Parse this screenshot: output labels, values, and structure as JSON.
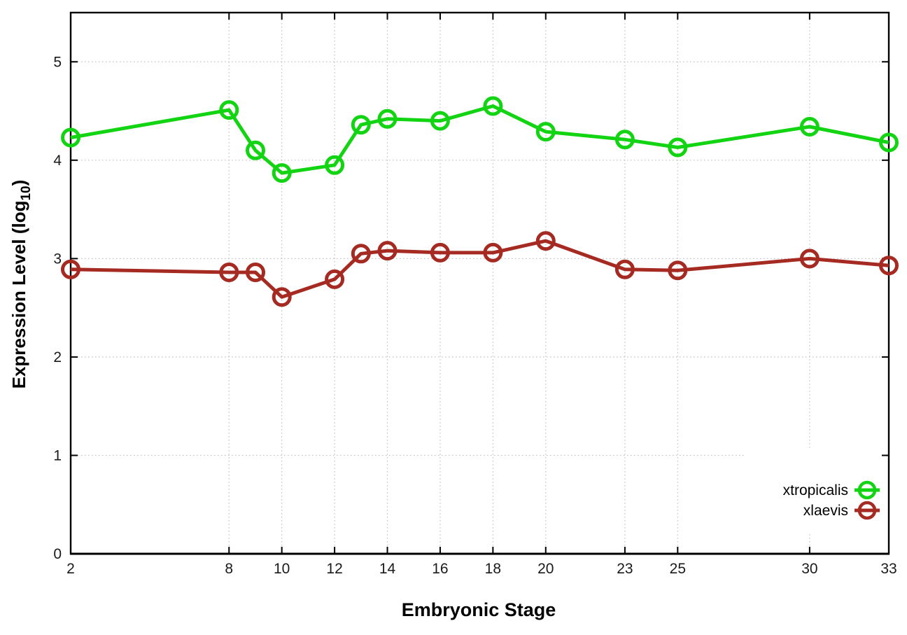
{
  "chart_data": {
    "type": "line",
    "title": "",
    "xlabel": "Embryonic Stage",
    "ylabel": "Expression Level (log10)",
    "ylabel_parts": {
      "prefix": "Expression Level (log",
      "subscript": "10",
      "suffix": ")"
    },
    "x": [
      2,
      8,
      9,
      10,
      12,
      13,
      14,
      16,
      18,
      20,
      23,
      25,
      30,
      33
    ],
    "xlim": [
      2,
      33
    ],
    "ylim": [
      0,
      5.5
    ],
    "xticks": [
      2,
      8,
      10,
      12,
      14,
      16,
      18,
      20,
      23,
      25,
      30,
      33
    ],
    "yticks": [
      0,
      1,
      2,
      3,
      4,
      5
    ],
    "grid": true,
    "legend_position": "bottom-right",
    "series": [
      {
        "name": "xtropicalis",
        "color": "#12d412",
        "values": [
          4.23,
          4.51,
          4.1,
          3.87,
          3.95,
          4.36,
          4.42,
          4.4,
          4.55,
          4.29,
          4.21,
          4.13,
          4.34,
          4.18
        ]
      },
      {
        "name": "xlaevis",
        "color": "#a52a22",
        "values": [
          2.89,
          2.86,
          2.86,
          2.61,
          2.79,
          3.05,
          3.08,
          3.06,
          3.06,
          3.18,
          2.89,
          2.88,
          3.0,
          2.93
        ]
      }
    ]
  },
  "styles": {
    "background": "#ffffff",
    "frame_color": "#000000",
    "grid_color": "#c4c4c4",
    "text_color": "#1a1a1a"
  }
}
